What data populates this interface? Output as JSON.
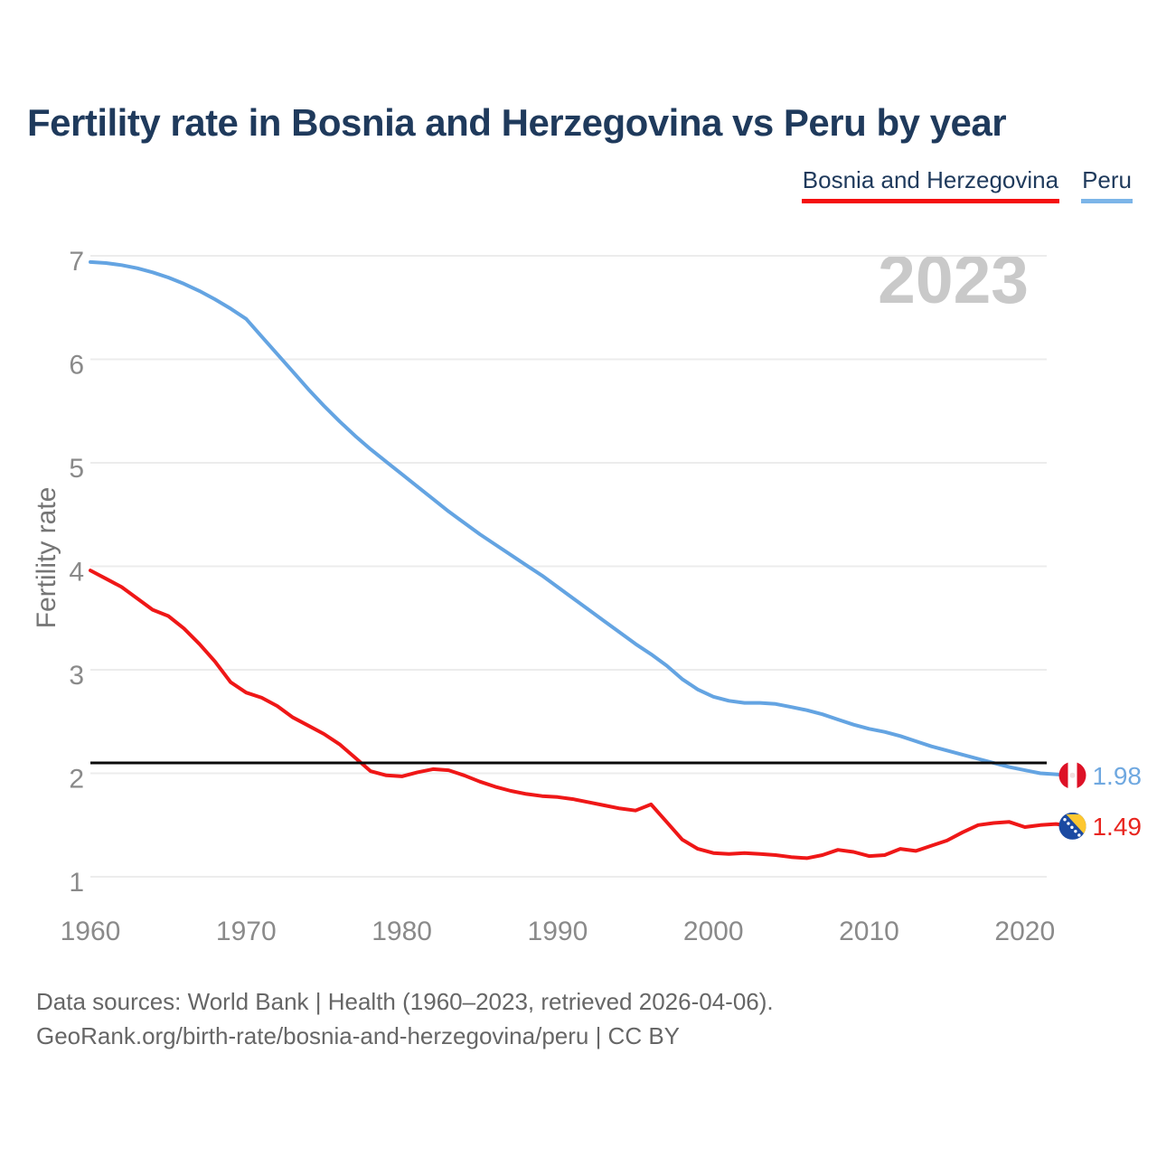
{
  "title": "Fertility rate in Bosnia and Herzegovina vs Peru by year",
  "legend": {
    "items": [
      {
        "label": "Bosnia and Herzegovina",
        "color": "#f50f0f"
      },
      {
        "label": "Peru",
        "color": "#7cb5e8"
      }
    ]
  },
  "watermark": "2023",
  "footer": {
    "line1": "Data sources: World Bank | Health (1960–2023, retrieved 2026-04-06).",
    "line2": "GeoRank.org/birth-rate/bosnia-and-herzegovina/peru | CC BY"
  },
  "chart_data": {
    "type": "line",
    "title": "Fertility rate in Bosnia and Herzegovina vs Peru by year",
    "xlabel": "",
    "ylabel": "Fertility rate",
    "x_start": 1960,
    "x_end": 2023,
    "xlim": [
      1960,
      2023
    ],
    "ylim": [
      0.8,
      7
    ],
    "grid": true,
    "legend_position": "top-right",
    "y_ticks": [
      7,
      6,
      5,
      4,
      3,
      2,
      1
    ],
    "x_ticks": [
      1960,
      1970,
      1980,
      1990,
      2000,
      2010,
      2020
    ],
    "reference_line": {
      "value": 2.1,
      "color": "#0b0b0b"
    },
    "axis_text_color": "#8a8a8a",
    "grid_color": "#ececec",
    "series": [
      {
        "name": "Peru",
        "color": "#64a4e2",
        "label_color": "#6fa8e0",
        "end_label": "1.98",
        "flag": "peru",
        "values": [
          6.94,
          6.93,
          6.91,
          6.88,
          6.84,
          6.79,
          6.73,
          6.66,
          6.58,
          6.49,
          6.39,
          6.22,
          6.05,
          5.88,
          5.71,
          5.55,
          5.4,
          5.26,
          5.13,
          5.01,
          4.89,
          4.77,
          4.65,
          4.53,
          4.42,
          4.31,
          4.21,
          4.11,
          4.01,
          3.91,
          3.8,
          3.69,
          3.58,
          3.47,
          3.36,
          3.25,
          3.15,
          3.04,
          2.91,
          2.81,
          2.74,
          2.7,
          2.68,
          2.68,
          2.67,
          2.64,
          2.61,
          2.57,
          2.52,
          2.47,
          2.43,
          2.4,
          2.36,
          2.31,
          2.26,
          2.22,
          2.18,
          2.14,
          2.1,
          2.06,
          2.03,
          2.0,
          1.99,
          1.98
        ]
      },
      {
        "name": "Bosnia and Herzegovina",
        "color": "#ef1717",
        "label_color": "#e8251f",
        "end_label": "1.49",
        "flag": "bosnia",
        "values": [
          3.96,
          3.88,
          3.8,
          3.69,
          3.58,
          3.52,
          3.4,
          3.25,
          3.08,
          2.88,
          2.78,
          2.73,
          2.65,
          2.54,
          2.46,
          2.38,
          2.28,
          2.15,
          2.02,
          1.98,
          1.97,
          2.01,
          2.04,
          2.03,
          1.98,
          1.92,
          1.87,
          1.83,
          1.8,
          1.78,
          1.77,
          1.75,
          1.72,
          1.69,
          1.66,
          1.64,
          1.7,
          1.53,
          1.36,
          1.27,
          1.23,
          1.22,
          1.23,
          1.22,
          1.21,
          1.19,
          1.18,
          1.21,
          1.26,
          1.24,
          1.2,
          1.21,
          1.27,
          1.25,
          1.3,
          1.35,
          1.43,
          1.5,
          1.52,
          1.53,
          1.48,
          1.5,
          1.51,
          1.49
        ]
      }
    ]
  }
}
